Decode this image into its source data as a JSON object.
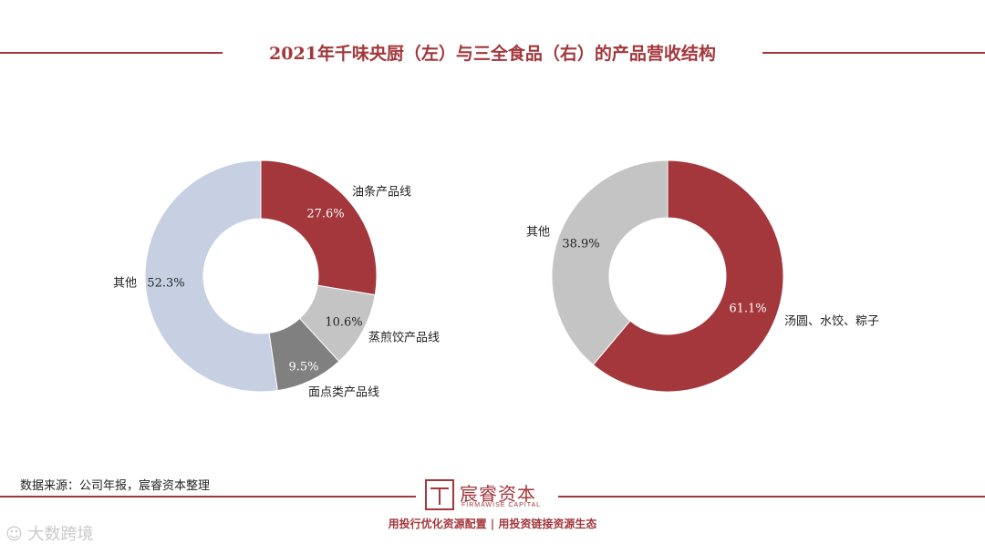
{
  "title": "2021年千味央厨（左）与三全食品（右）的产品营收结构",
  "colors": {
    "accent": "#a3373b",
    "light_gray": "#c4c4c4",
    "mid_gray": "#808080",
    "light_blue": "#c6d0e2",
    "white": "#ffffff"
  },
  "chart_data": [
    {
      "type": "pie",
      "variant": "donut",
      "name": "千味央厨",
      "slices": [
        {
          "label": "油条产品线",
          "value": 27.6,
          "value_label": "27.6%",
          "color": "#a3373b",
          "label_color": "#ffffff"
        },
        {
          "label": "蒸煎饺产品线",
          "value": 10.6,
          "value_label": "10.6%",
          "color": "#c4c4c4",
          "label_color": "#222222"
        },
        {
          "label": "面点类产品线",
          "value": 9.5,
          "value_label": "9.5%",
          "color": "#808080",
          "label_color": "#ffffff"
        },
        {
          "label": "其他",
          "value": 52.3,
          "value_label": "52.3%",
          "color": "#c6d0e2",
          "label_color": "#222222"
        }
      ]
    },
    {
      "type": "pie",
      "variant": "donut",
      "name": "三全食品",
      "slices": [
        {
          "label": "汤圆、水饺、粽子",
          "value": 61.1,
          "value_label": "61.1%",
          "color": "#a3373b",
          "label_color": "#ffffff"
        },
        {
          "label": "其他",
          "value": 38.9,
          "value_label": "38.9%",
          "color": "#c4c4c4",
          "label_color": "#222222"
        }
      ]
    }
  ],
  "footer": {
    "source": "数据来源：公司年报，宸睿资本整理",
    "logo_name": "宸睿资本",
    "logo_en": "FIRMAWISE CAPITAL",
    "slogan": "用投行优化资源配置 | 用投资链接资源生态",
    "watermark": "大数跨境"
  }
}
